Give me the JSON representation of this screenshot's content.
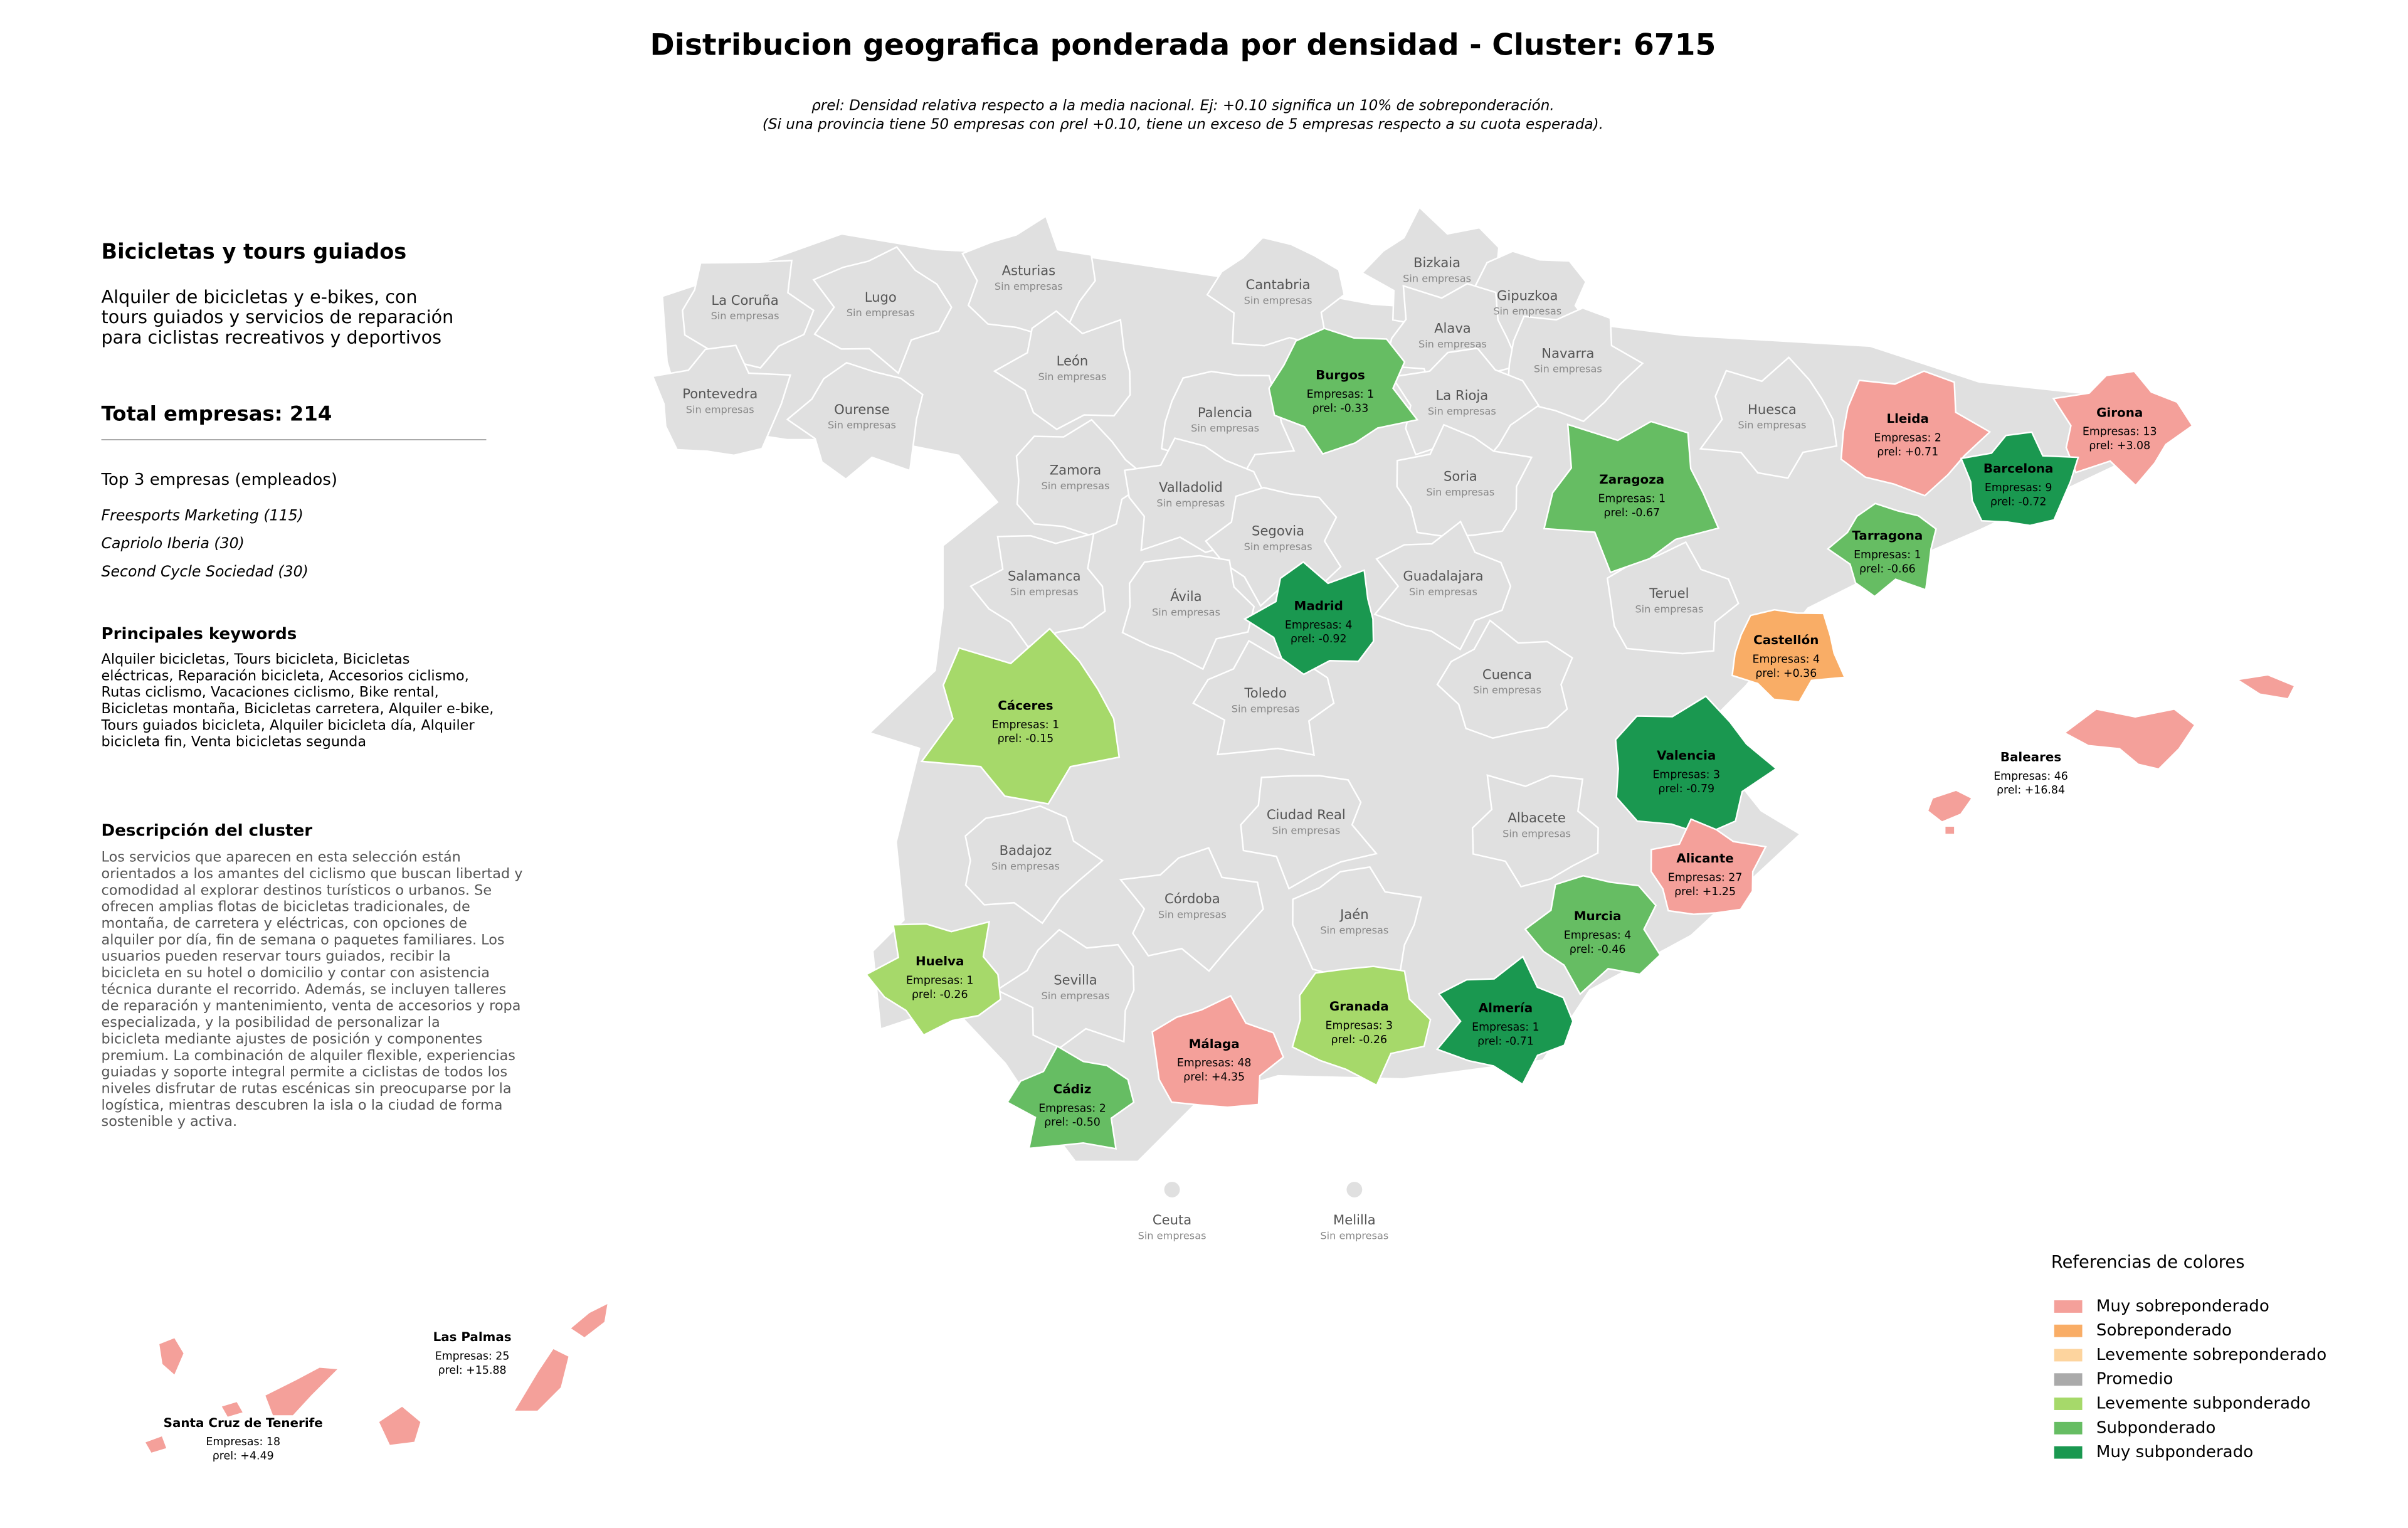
{
  "title": "Distribucion geografica ponderada por densidad - Cluster: 6715",
  "subtitle": [
    "ρrel: Densidad relativa respecto a la media nacional. Ej: +0.10 significa un 10% de sobreponderación.",
    "(Si una provincia tiene 50 empresas con ρrel +0.10, tiene un exceso de 5 empresas respecto a su cuota esperada)."
  ],
  "panel": {
    "title": "Bicicletas y tours guiados",
    "summary": [
      "Alquiler de bicicletas y e-bikes, con",
      "tours guiados y servicios de reparación",
      "para ciclistas recreativos y deportivos"
    ],
    "total": "Total empresas: 214",
    "top_header": "Top 3 empresas (empleados)",
    "top": [
      "Freesports Marketing (115)",
      "Capriolo Iberia (30)",
      "Second Cycle Sociedad (30)"
    ],
    "keywords_header": "Principales keywords",
    "keywords": [
      "Alquiler bicicletas, Tours bicicleta, Bicicletas",
      "eléctricas, Reparación bicicleta, Accesorios ciclismo,",
      "Rutas ciclismo, Vacaciones ciclismo, Bike rental,",
      "Bicicletas montaña, Bicicletas carretera, Alquiler e-bike,",
      "Tours guiados bicicleta, Alquiler bicicleta día, Alquiler",
      "bicicleta fin, Venta bicicletas segunda"
    ],
    "description_header": "Descripción del cluster",
    "description": [
      "Los servicios que aparecen en esta selección están",
      "orientados a los amantes del ciclismo que buscan libertad y",
      "comodidad al explorar destinos turísticos o urbanos. Se",
      "ofrecen amplias flotas de bicicletas tradicionales, de",
      "montaña, de carretera y eléctricas, con opciones de",
      "alquiler por día, fin de semana o paquetes familiares. Los",
      "usuarios pueden reservar tours guiados, recibir la",
      "bicicleta en su hotel o domicilio y contar con asistencia",
      "técnica durante el recorrido. Además, se incluyen talleres",
      "de reparación y mantenimiento, venta de accesorios y ropa",
      "especializada, y la posibilidad de personalizar la",
      "bicicleta mediante ajustes de posición y componentes",
      "premium. La combinación de alquiler flexible, experiencias",
      "guiadas y soporte integral permite a ciclistas de todos los",
      "niveles disfrutar de rutas escénicas sin preocuparse por la",
      "logística, mientras descubren la isla o la ciudad de forma",
      "sostenible y activa."
    ]
  },
  "empty_label": "Sin empresas",
  "empty_color": "#e0e0e0",
  "empty_provinces": [
    "La Coruña",
    "Lugo",
    "Asturias",
    "Cantabria",
    "Bizkaia",
    "Gipuzkoa",
    "Alava",
    "Navarra",
    "La Rioja",
    "Pontevedra",
    "Ourense",
    "León",
    "Palencia",
    "Huesca",
    "Zamora",
    "Valladolid",
    "Soria",
    "Segovia",
    "Salamanca",
    "Ávila",
    "Guadalajara",
    "Teruel",
    "Toledo",
    "Cuenca",
    "Ciudad Real",
    "Albacete",
    "Badajoz",
    "Córdoba",
    "Jaén",
    "Sevilla",
    "Ceuta",
    "Melilla"
  ],
  "provinces": [
    {
      "name": "Burgos",
      "count": "Empresas: 1",
      "density": "ρrel: -0.33",
      "level": 5
    },
    {
      "name": "Zaragoza",
      "count": "Empresas: 1",
      "density": "ρrel: -0.67",
      "level": 5
    },
    {
      "name": "Lleida",
      "count": "Empresas: 2",
      "density": "ρrel: +0.71",
      "level": 0
    },
    {
      "name": "Girona",
      "count": "Empresas: 13",
      "density": "ρrel: +3.08",
      "level": 0
    },
    {
      "name": "Barcelona",
      "count": "Empresas: 9",
      "density": "ρrel: -0.72",
      "level": 6
    },
    {
      "name": "Tarragona",
      "count": "Empresas: 1",
      "density": "ρrel: -0.66",
      "level": 5
    },
    {
      "name": "Madrid",
      "count": "Empresas: 4",
      "density": "ρrel: -0.92",
      "level": 6
    },
    {
      "name": "Castellón",
      "count": "Empresas: 4",
      "density": "ρrel: +0.36",
      "level": 1
    },
    {
      "name": "Cáceres",
      "count": "Empresas: 1",
      "density": "ρrel: -0.15",
      "level": 4
    },
    {
      "name": "Valencia",
      "count": "Empresas: 3",
      "density": "ρrel: -0.79",
      "level": 6
    },
    {
      "name": "Baleares",
      "count": "Empresas: 46",
      "density": "ρrel: +16.84",
      "level": 0
    },
    {
      "name": "Alicante",
      "count": "Empresas: 27",
      "density": "ρrel: +1.25",
      "level": 0
    },
    {
      "name": "Murcia",
      "count": "Empresas: 4",
      "density": "ρrel: -0.46",
      "level": 5
    },
    {
      "name": "Huelva",
      "count": "Empresas: 1",
      "density": "ρrel: -0.26",
      "level": 4
    },
    {
      "name": "Granada",
      "count": "Empresas: 3",
      "density": "ρrel: -0.26",
      "level": 4
    },
    {
      "name": "Almería",
      "count": "Empresas: 1",
      "density": "ρrel: -0.71",
      "level": 6
    },
    {
      "name": "Málaga",
      "count": "Empresas: 48",
      "density": "ρrel: +4.35",
      "level": 0
    },
    {
      "name": "Cádiz",
      "count": "Empresas: 2",
      "density": "ρrel: -0.50",
      "level": 5
    },
    {
      "name": "Las Palmas",
      "count": "Empresas: 25",
      "density": "ρrel: +15.88",
      "level": 0
    },
    {
      "name": "Santa Cruz de Tenerife",
      "count": "Empresas: 18",
      "density": "ρrel: +4.49",
      "level": 0
    }
  ],
  "legend": {
    "title": "Referencias de colores",
    "items": [
      {
        "label": "Muy sobreponderado",
        "color": "#f4a09a"
      },
      {
        "label": "Sobreponderado",
        "color": "#f9ad66"
      },
      {
        "label": "Levemente sobreponderado",
        "color": "#fdd49e"
      },
      {
        "label": "Promedio",
        "color": "#aaaaaa"
      },
      {
        "label": "Levemente subponderado",
        "color": "#a6d96a"
      },
      {
        "label": "Subponderado",
        "color": "#66bd63"
      },
      {
        "label": "Muy subponderado",
        "color": "#1a9850"
      }
    ]
  }
}
